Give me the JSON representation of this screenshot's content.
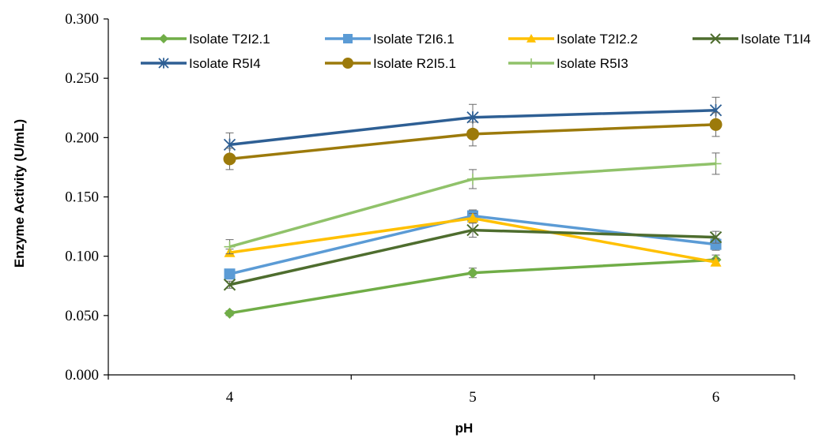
{
  "chart_data": {
    "type": "line",
    "title": "",
    "xlabel": "pH",
    "ylabel": "Enzyme Activity (U/mL)",
    "x": [
      4,
      5,
      6
    ],
    "x_tick_labels": [
      "4",
      "5",
      "6"
    ],
    "ylim": [
      0,
      0.3
    ],
    "y_tick_labels": [
      "0.000",
      "0.050",
      "0.100",
      "0.150",
      "0.200",
      "0.250",
      "0.300"
    ],
    "grid": false,
    "legend_position": "top",
    "series": [
      {
        "name": "Isolate T2I2.1",
        "color": "#70AD47",
        "marker": "diamond",
        "values": [
          0.052,
          0.086,
          0.097
        ],
        "errors": [
          0.002,
          0.004,
          0.004
        ]
      },
      {
        "name": "Isolate T2I6.1",
        "color": "#5B9BD5",
        "marker": "square",
        "values": [
          0.085,
          0.134,
          0.11
        ],
        "errors": [
          0.003,
          0.005,
          0.005
        ]
      },
      {
        "name": "Isolate T2I2.2",
        "color": "#FFC000",
        "marker": "triangle",
        "values": [
          0.103,
          0.132,
          0.095
        ],
        "errors": [
          0.003,
          0.004,
          0.003
        ]
      },
      {
        "name": "Isolate T1I4",
        "color": "#4E6D2E",
        "marker": "x",
        "values": [
          0.076,
          0.122,
          0.116
        ],
        "errors": [
          0.003,
          0.006,
          0.005
        ]
      },
      {
        "name": "Isolate R5I4",
        "color": "#2E5F94",
        "marker": "asterisk",
        "values": [
          0.194,
          0.217,
          0.223
        ],
        "errors": [
          0.01,
          0.011,
          0.011
        ]
      },
      {
        "name": "Isolate R2I5.1",
        "color": "#9C7A0B",
        "marker": "circle",
        "values": [
          0.182,
          0.203,
          0.211
        ],
        "errors": [
          0.009,
          0.01,
          0.01
        ]
      },
      {
        "name": "Isolate R5I3",
        "color": "#90C26A",
        "marker": "plus",
        "values": [
          0.108,
          0.165,
          0.178
        ],
        "errors": [
          0.006,
          0.008,
          0.009
        ]
      }
    ]
  }
}
